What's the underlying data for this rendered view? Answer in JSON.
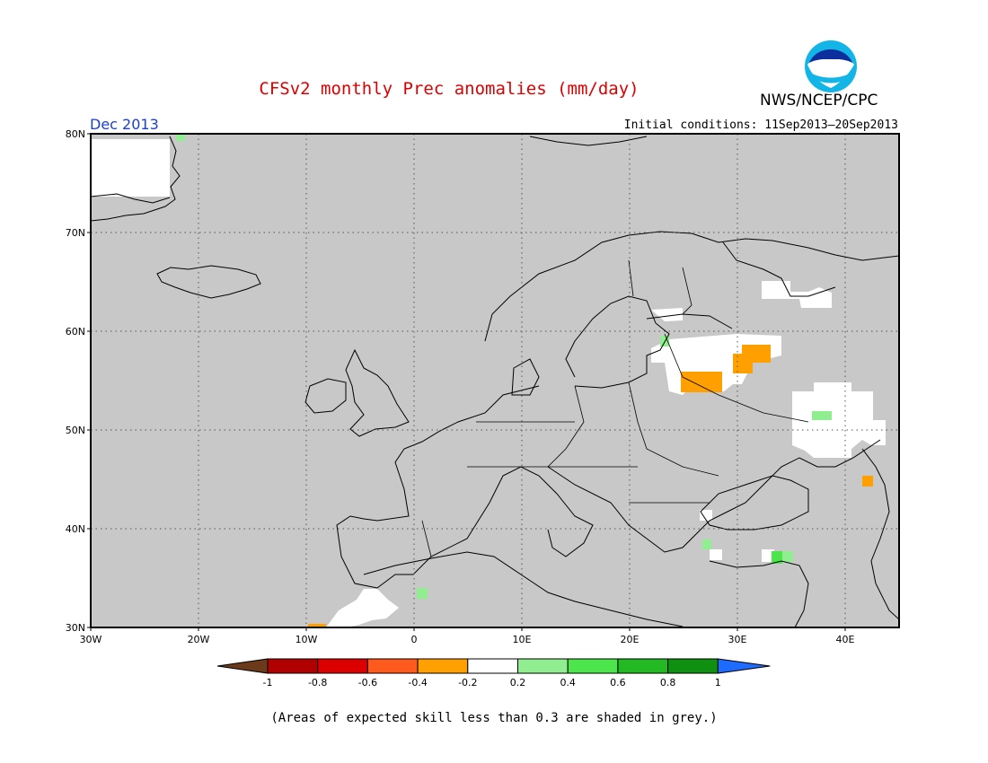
{
  "header": {
    "title": "CFSv2 monthly Prec anomalies (mm/day)",
    "agency": "NWS/NCEP/CPC",
    "logo_text": "NOAA",
    "month": "Dec 2013",
    "initial_conditions": "Initial conditions: 11Sep2013–20Sep2013"
  },
  "map": {
    "lon_range": [
      -30,
      45
    ],
    "lat_range": [
      30,
      80
    ],
    "lat_labels": [
      "30N",
      "40N",
      "50N",
      "60N",
      "70N",
      "80N"
    ],
    "lon_labels": [
      "30W",
      "20W",
      "10W",
      "0",
      "10E",
      "20E",
      "30E",
      "40E"
    ],
    "background_color": "#c8c8c8",
    "grid": "dotted",
    "anomaly_cells": [
      {
        "lon": -22,
        "lat": 79.5,
        "value": 0.3
      },
      {
        "lon": 1,
        "lat": 33.5,
        "value": 0.3
      },
      {
        "lon": 25,
        "lat": 54.5,
        "value": -0.3
      },
      {
        "lon": 26.5,
        "lat": 54.5,
        "value": -0.3
      },
      {
        "lon": 32,
        "lat": 57,
        "value": -0.3
      },
      {
        "lon": 33,
        "lat": 57.8,
        "value": -0.3
      },
      {
        "lon": 42,
        "lat": 45,
        "value": -0.3
      },
      {
        "lon": 23.5,
        "lat": 59,
        "value": 0.3
      },
      {
        "lon": 38,
        "lat": 51.3,
        "value": 0.3
      },
      {
        "lon": 27.5,
        "lat": 38.2,
        "value": 0.3
      },
      {
        "lon": 34,
        "lat": 37.2,
        "value": 0.5
      },
      {
        "lon": 35,
        "lat": 37.2,
        "value": 0.3
      }
    ]
  },
  "colorbar": {
    "tick_labels": [
      "-1",
      "-0.8",
      "-0.6",
      "-0.4",
      "-0.2",
      "0.2",
      "0.4",
      "0.6",
      "0.8",
      "1"
    ],
    "colors": [
      "#6b3a1a",
      "#b00000",
      "#dd0000",
      "#ff5a1e",
      "#ff9f00",
      "#ffffff",
      "#90ee90",
      "#4ce64c",
      "#22b922",
      "#109010",
      "#1e6cff"
    ]
  },
  "footer_note": "(Areas of expected skill less than 0.3 are shaded in grey.)"
}
